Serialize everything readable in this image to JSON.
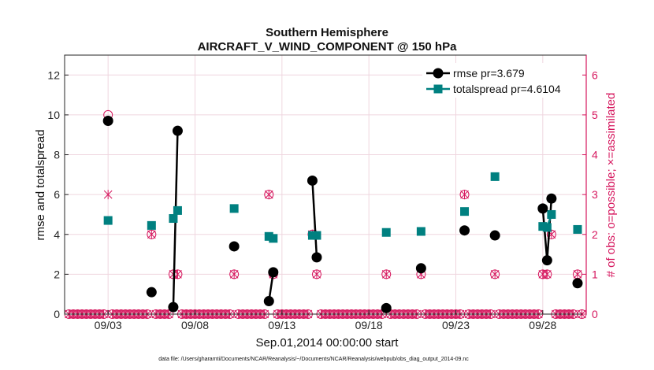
{
  "chart_data": {
    "type": "line",
    "title": "Southern Hemisphere",
    "subtitle": "AIRCRAFT_V_WIND_COMPONENT @ 150 hPa",
    "xlabel": "Sep.01,2014 00:00:00 start",
    "ylabel": "rmse and totalspread",
    "y2label": "# of obs: o=possible; ×=assimilated",
    "footer": "data file: /Users/gharamti/Documents/NCAR/Reanalysis/~/Documents/NCAR/Reanalysis/webpub/obs_diag_output_2014-09.nc",
    "xlim": [
      0.5,
      30.5
    ],
    "ylim": [
      0,
      13
    ],
    "y2lim": [
      0,
      6.5
    ],
    "xticks": [
      3,
      8,
      13,
      18,
      23,
      28
    ],
    "xtick_labels": [
      "09/03",
      "09/08",
      "09/13",
      "09/18",
      "09/23",
      "09/28"
    ],
    "yticks": [
      0,
      2,
      4,
      6,
      8,
      10,
      12
    ],
    "y2ticks": [
      0,
      1,
      2,
      3,
      4,
      5,
      6
    ],
    "legend": [
      {
        "label": "rmse pr=3.679",
        "color": "#000000",
        "marker": "circle"
      },
      {
        "label": "totalspread pr=4.6104",
        "color": "#008080",
        "marker": "square"
      }
    ],
    "legend_position": "top-right",
    "series": [
      {
        "name": "rmse",
        "color": "#000000",
        "x": [
          3,
          5.5,
          6.75,
          7,
          10.25,
          12.25,
          12.5,
          14.75,
          15,
          19,
          21,
          23.5,
          25.25,
          28,
          28.25,
          28.5,
          30
        ],
        "values": [
          9.7,
          1.1,
          0.35,
          9.2,
          3.4,
          0.65,
          2.1,
          6.7,
          2.85,
          0.3,
          2.3,
          4.2,
          3.95,
          5.3,
          2.7,
          5.8,
          1.55
        ],
        "segments": [
          [
            6.75,
            7
          ],
          [
            12.25,
            12.5
          ],
          [
            14.75,
            15
          ],
          [
            28,
            28.25,
            28.5
          ]
        ]
      },
      {
        "name": "totalspread",
        "color": "#008080",
        "x": [
          3,
          5.5,
          6.75,
          7,
          10.25,
          12.25,
          12.5,
          14.75,
          15,
          19,
          21,
          23.5,
          25.25,
          28,
          28.25,
          28.5,
          30
        ],
        "values": [
          4.7,
          4.45,
          4.8,
          5.2,
          5.3,
          3.9,
          3.8,
          3.95,
          3.95,
          4.1,
          4.15,
          5.15,
          6.9,
          4.4,
          4.35,
          5.0,
          4.25
        ],
        "segments": [
          [
            6.75,
            7
          ],
          [
            12.25,
            12.5
          ],
          [
            14.75,
            15
          ],
          [
            28,
            28.25,
            28.5
          ]
        ]
      },
      {
        "name": "obs possible",
        "axis": "right",
        "color": "#d6175e",
        "marker": "open-circle",
        "x": [
          3,
          5.5,
          6.75,
          7,
          10.25,
          12.25,
          12.5,
          14.75,
          15,
          19,
          21,
          23.5,
          25.25,
          28,
          28.25,
          28.5,
          30
        ],
        "values": [
          5,
          2,
          1,
          1,
          1,
          3,
          1,
          2,
          1,
          1,
          1,
          3,
          1,
          1,
          1,
          2,
          1
        ]
      },
      {
        "name": "obs assimilated",
        "axis": "right",
        "color": "#d6175e",
        "marker": "asterisk",
        "x": [
          3,
          5.5,
          6.75,
          7,
          10.25,
          12.25,
          12.5,
          14.75,
          15,
          19,
          21,
          23.5,
          25.25,
          28,
          28.25,
          28.5,
          30
        ],
        "values": [
          3,
          2,
          1,
          1,
          1,
          3,
          1,
          2,
          1,
          1,
          1,
          3,
          1,
          1,
          1,
          2,
          1
        ]
      }
    ],
    "zero_obs_start": 0.75,
    "zero_obs_step": 0.25
  }
}
